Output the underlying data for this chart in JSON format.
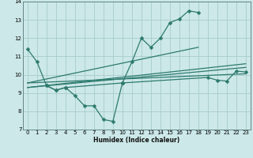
{
  "title": "",
  "xlabel": "Humidex (Indice chaleur)",
  "bg_color": "#cce8e8",
  "line_color": "#2d7a6e",
  "xlim": [
    -0.5,
    23.5
  ],
  "ylim": [
    7,
    14
  ],
  "xticks": [
    0,
    1,
    2,
    3,
    4,
    5,
    6,
    7,
    8,
    9,
    10,
    11,
    12,
    13,
    14,
    15,
    16,
    17,
    18,
    19,
    20,
    21,
    22,
    23
  ],
  "yticks": [
    7,
    8,
    9,
    10,
    11,
    12,
    13,
    14
  ],
  "series": [
    {
      "x": [
        0,
        1,
        2,
        3,
        4,
        5,
        6,
        7,
        8,
        9,
        10
      ],
      "y": [
        11.4,
        10.7,
        9.4,
        9.15,
        9.3,
        8.85,
        8.3,
        8.3,
        7.55,
        7.45,
        9.55
      ],
      "marker": "D",
      "ms": 2.5
    },
    {
      "x": [
        2,
        3,
        4,
        10,
        11,
        12,
        13,
        14,
        15,
        16,
        17,
        18
      ],
      "y": [
        9.4,
        9.15,
        9.3,
        9.55,
        10.7,
        12.0,
        11.5,
        12.0,
        12.85,
        13.05,
        13.5,
        13.4
      ],
      "marker": "D",
      "ms": 2.5
    },
    {
      "x": [
        10,
        19,
        20,
        21,
        22,
        23
      ],
      "y": [
        9.55,
        9.85,
        9.7,
        9.65,
        10.2,
        10.15
      ],
      "marker": "D",
      "ms": 2.5
    },
    {
      "x": [
        0,
        23
      ],
      "y": [
        9.55,
        10.05
      ],
      "marker": null,
      "ms": 0
    },
    {
      "x": [
        0,
        23
      ],
      "y": [
        9.3,
        10.4
      ],
      "marker": null,
      "ms": 0
    },
    {
      "x": [
        0,
        23
      ],
      "y": [
        9.3,
        10.6
      ],
      "marker": null,
      "ms": 0
    },
    {
      "x": [
        0,
        18
      ],
      "y": [
        9.55,
        11.5
      ],
      "marker": null,
      "ms": 0
    }
  ]
}
